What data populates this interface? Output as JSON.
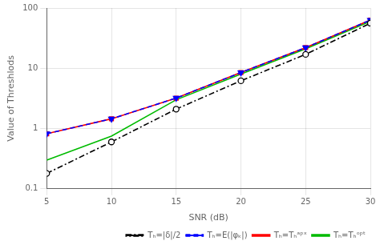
{
  "chart_data": {
    "type": "line",
    "x": [
      5,
      10,
      15,
      20,
      25,
      30
    ],
    "series": [
      {
        "name": "Tₕ=|δ|/2",
        "color": "#000000",
        "marker": "circle",
        "line_style": "dashdot",
        "values": [
          0.18,
          0.6,
          2.1,
          6.2,
          17.0,
          56.0
        ]
      },
      {
        "name": "Tₕ=E(|φₖ|)",
        "color": "#0000ff",
        "marker": "triangle_down",
        "line_style": "dashed",
        "values": [
          0.82,
          1.45,
          3.2,
          8.5,
          22.0,
          63.0
        ]
      },
      {
        "name": "Tₕ=Tₕᵃᵖˣ",
        "color": "#ff0000",
        "marker": "square",
        "line_style": "solid",
        "values": [
          0.82,
          1.45,
          3.2,
          8.5,
          22.0,
          63.0
        ]
      },
      {
        "name": "Tₕ=Tₕᵒᵖᵗ",
        "color": "#00bb00",
        "marker": "none",
        "line_style": "solid",
        "values": [
          0.3,
          0.75,
          3.0,
          8.0,
          21.0,
          60.0
        ]
      }
    ],
    "x_label": "SNR (dB)",
    "y_label": "Value of Threshlods",
    "xlim": [
      5,
      30
    ],
    "xticks": [
      5,
      10,
      15,
      20,
      25,
      30
    ],
    "ylim": [
      0.1,
      100
    ],
    "yticks": [
      0.1,
      1,
      10,
      100
    ],
    "log": "y",
    "grid": true,
    "legend": "lower right"
  }
}
